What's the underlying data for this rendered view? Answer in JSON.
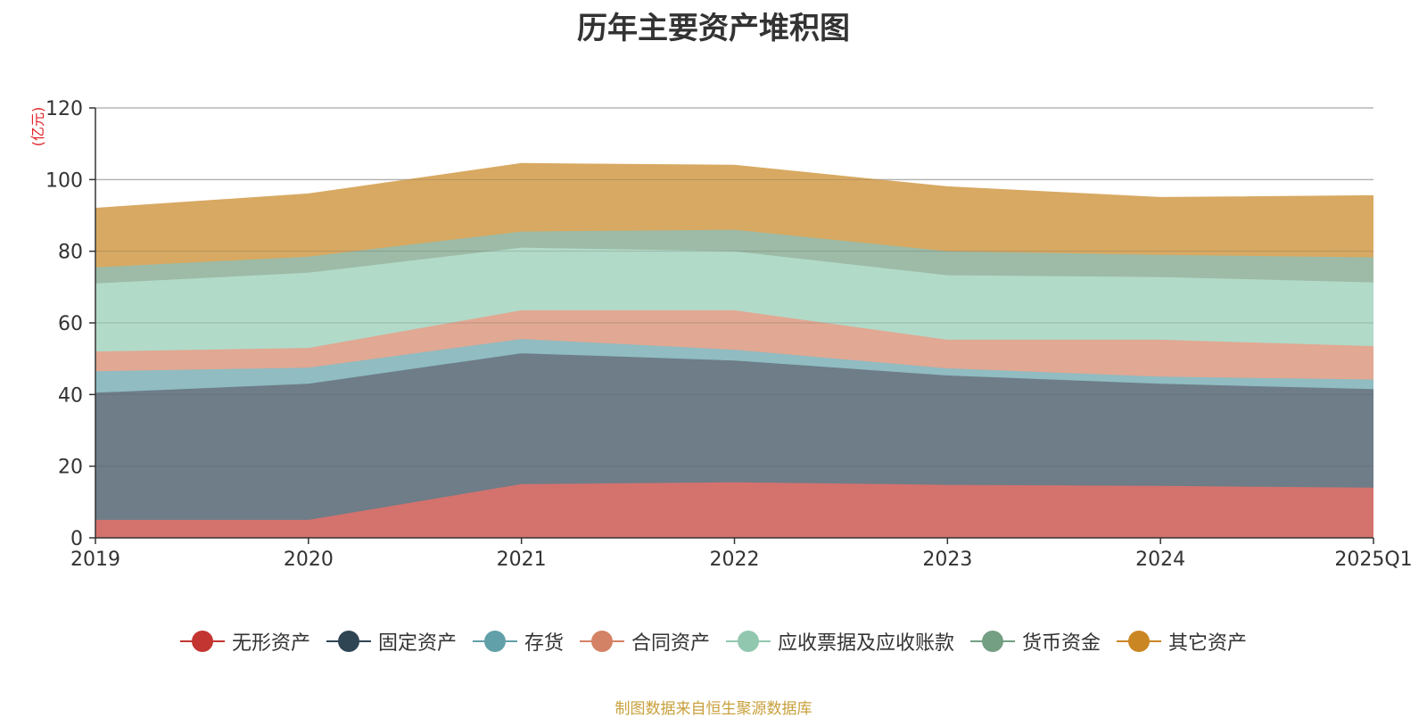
{
  "chart_data": {
    "type": "area",
    "stacked": true,
    "title": "历年主要资产堆积图",
    "ylabel": "(亿元)",
    "xlabel": "",
    "ylim": [
      0,
      120
    ],
    "yticks": [
      0,
      20,
      40,
      60,
      80,
      100,
      120
    ],
    "grid": true,
    "legend_position": "bottom",
    "categories": [
      "2019",
      "2020",
      "2021",
      "2022",
      "2023",
      "2024",
      "2025Q1"
    ],
    "series": [
      {
        "name": "无形资产",
        "color": "#c23531",
        "fill": "#d4726e",
        "values": [
          5.0,
          5.0,
          15.0,
          15.5,
          14.8,
          14.5,
          14.0
        ]
      },
      {
        "name": "固定资产",
        "color": "#2f4554",
        "fill": "#6e7d88",
        "values": [
          35.5,
          38.0,
          36.5,
          34.0,
          30.5,
          28.5,
          27.5
        ]
      },
      {
        "name": "存货",
        "color": "#61a0a8",
        "fill": "#90bcc2",
        "values": [
          6.0,
          4.5,
          4.0,
          3.0,
          2.0,
          2.0,
          2.7
        ]
      },
      {
        "name": "合同资产",
        "color": "#d48265",
        "fill": "#e1a893",
        "values": [
          5.5,
          5.5,
          8.0,
          11.0,
          8.0,
          10.3,
          9.3
        ]
      },
      {
        "name": "应收票据及应收账款",
        "color": "#91c7ae",
        "fill": "#b2dac8",
        "values": [
          19.0,
          21.0,
          17.5,
          16.5,
          18.0,
          17.5,
          17.8
        ]
      },
      {
        "name": "货币资金",
        "color": "#749f83",
        "fill": "#9dbba6",
        "values": [
          4.5,
          4.5,
          4.5,
          6.0,
          6.7,
          6.2,
          7.0
        ]
      },
      {
        "name": "其它资产",
        "color": "#ca8622",
        "fill": "#d8a962",
        "values": [
          16.5,
          17.5,
          19.0,
          18.0,
          18.0,
          16.0,
          17.2
        ]
      }
    ]
  },
  "source_note": "制图数据来自恒生聚源数据库"
}
